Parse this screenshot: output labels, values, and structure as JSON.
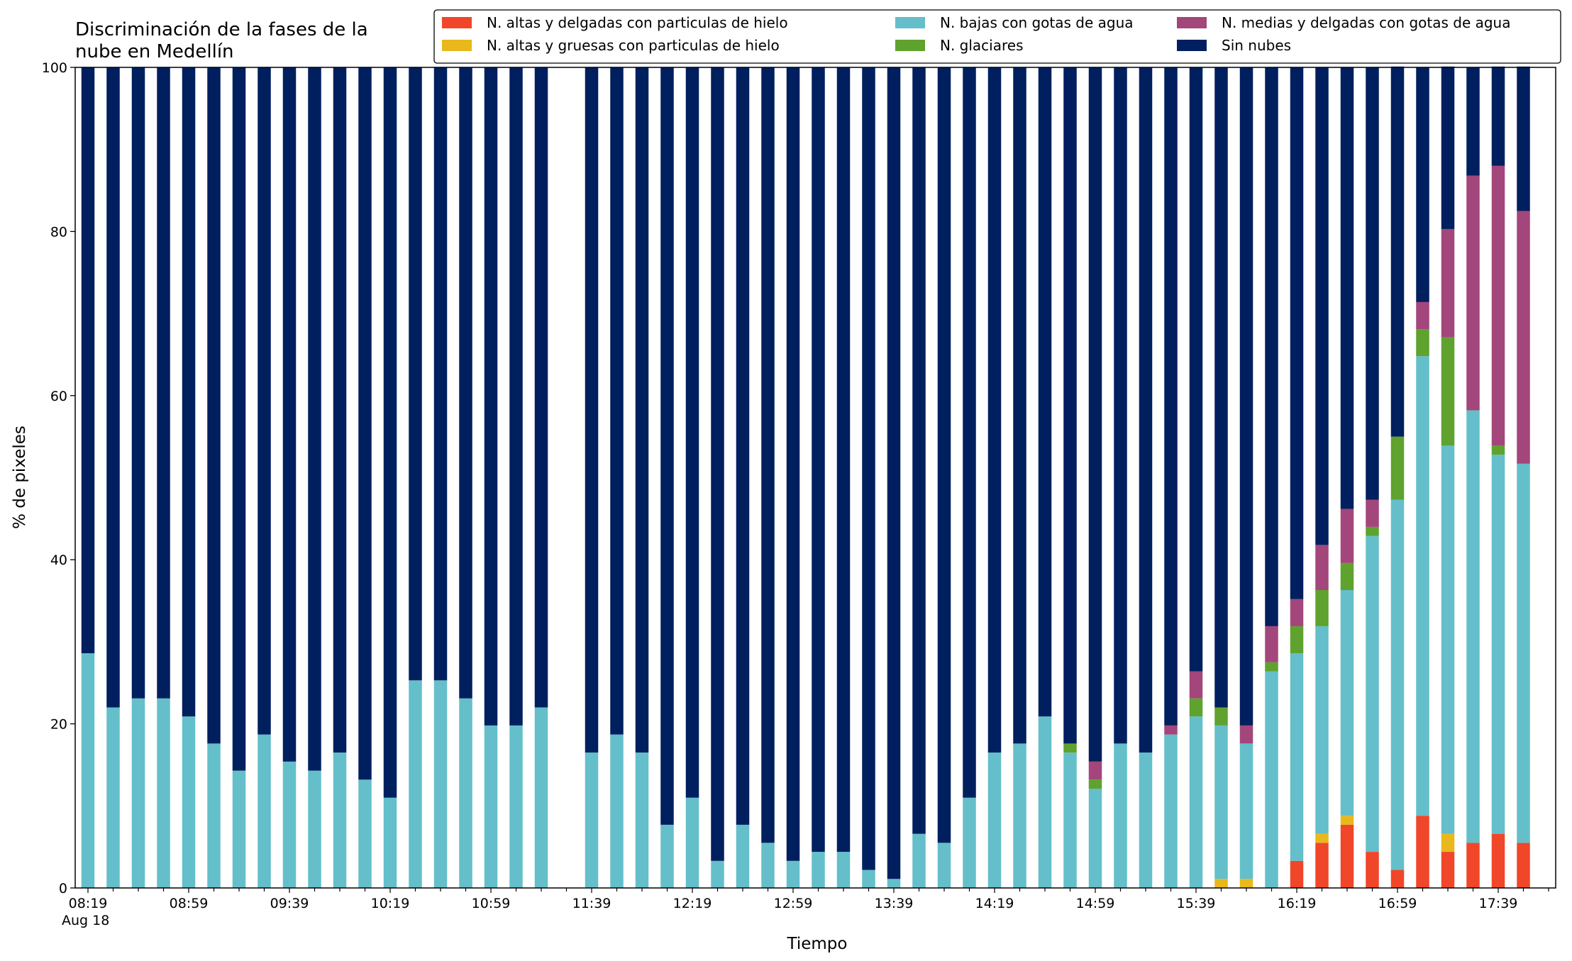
{
  "chart_data": {
    "type": "bar",
    "stacked": true,
    "title": "Discriminación de la fases de la\nnube en Medellín",
    "xlabel": "Tiempo",
    "ylabel": "% de pixeles",
    "ylim": [
      0,
      100
    ],
    "yticks": [
      0,
      20,
      40,
      60,
      80,
      100
    ],
    "xtick_labels": [
      {
        "slot": 0,
        "label": "08:19",
        "sublabel": "Aug 18"
      },
      {
        "slot": 4,
        "label": "08:59"
      },
      {
        "slot": 8,
        "label": "09:39"
      },
      {
        "slot": 12,
        "label": "10:19"
      },
      {
        "slot": 16,
        "label": "10:59"
      },
      {
        "slot": 20,
        "label": "11:39"
      },
      {
        "slot": 24,
        "label": "12:19"
      },
      {
        "slot": 28,
        "label": "12:59"
      },
      {
        "slot": 32,
        "label": "13:39"
      },
      {
        "slot": 36,
        "label": "14:19"
      },
      {
        "slot": 40,
        "label": "14:59"
      },
      {
        "slot": 44,
        "label": "15:39"
      },
      {
        "slot": 48,
        "label": "16:19"
      },
      {
        "slot": 52,
        "label": "16:59"
      },
      {
        "slot": 56,
        "label": "17:39"
      }
    ],
    "time_step_minutes": 10,
    "missing_slots": [
      19
    ],
    "legend_placement": "top",
    "series": [
      {
        "name": "N. altas y delgadas con particulas de hielo",
        "color": "#f0462a",
        "values": [
          0,
          0,
          0,
          0,
          0,
          0,
          0,
          0,
          0,
          0,
          0,
          0,
          0,
          0,
          0,
          0,
          0,
          0,
          0,
          0,
          0,
          0,
          0,
          0,
          0,
          0,
          0,
          0,
          0,
          0,
          0,
          0,
          0,
          0,
          0,
          0,
          0,
          0,
          0,
          0,
          0,
          0,
          0,
          0,
          0,
          0,
          0,
          0,
          3.3,
          5.5,
          7.7,
          4.4,
          2.2,
          8.8,
          4.4,
          5.5,
          6.6,
          5.5
        ]
      },
      {
        "name": "N. altas y gruesas con particulas de hielo",
        "color": "#e8b81c",
        "values": [
          0,
          0,
          0,
          0,
          0,
          0,
          0,
          0,
          0,
          0,
          0,
          0,
          0,
          0,
          0,
          0,
          0,
          0,
          0,
          0,
          0,
          0,
          0,
          0,
          0,
          0,
          0,
          0,
          0,
          0,
          0,
          0,
          0,
          0,
          0,
          0,
          0,
          0,
          0,
          0,
          0,
          0,
          0,
          0,
          0,
          1.1,
          1.1,
          0,
          0,
          1.1,
          1.1,
          0,
          0,
          0,
          2.2,
          0,
          0,
          0
        ]
      },
      {
        "name": "N. bajas con gotas de agua",
        "color": "#64bfca",
        "values": [
          28.6,
          22.0,
          23.1,
          23.1,
          20.9,
          17.6,
          14.3,
          18.7,
          15.4,
          14.3,
          16.5,
          13.2,
          11.0,
          25.3,
          25.3,
          23.1,
          19.8,
          19.8,
          22.0,
          0,
          16.5,
          18.7,
          16.5,
          7.7,
          11.0,
          3.3,
          7.7,
          5.5,
          3.3,
          4.4,
          4.4,
          2.2,
          1.1,
          6.6,
          5.5,
          11.0,
          16.5,
          17.6,
          20.9,
          16.5,
          12.1,
          17.6,
          16.5,
          18.7,
          20.9,
          18.7,
          16.5,
          26.4,
          25.3,
          25.3,
          27.5,
          38.5,
          45.1,
          56.0,
          47.3,
          52.7,
          46.2,
          46.2
        ]
      },
      {
        "name": "N. glaciares",
        "color": "#5fa22e",
        "values": [
          0,
          0,
          0,
          0,
          0,
          0,
          0,
          0,
          0,
          0,
          0,
          0,
          0,
          0,
          0,
          0,
          0,
          0,
          0,
          0,
          0,
          0,
          0,
          0,
          0,
          0,
          0,
          0,
          0,
          0,
          0,
          0,
          0,
          0,
          0,
          0,
          0,
          0,
          0,
          1.1,
          1.1,
          0,
          0,
          0,
          2.2,
          2.2,
          0,
          1.1,
          3.3,
          4.4,
          3.3,
          1.1,
          7.7,
          3.3,
          13.2,
          0,
          1.1,
          0
        ]
      },
      {
        "name": "N. medias y delgadas con gotas de agua",
        "color": "#a3467b",
        "values": [
          0,
          0,
          0,
          0,
          0,
          0,
          0,
          0,
          0,
          0,
          0,
          0,
          0,
          0,
          0,
          0,
          0,
          0,
          0,
          0,
          0,
          0,
          0,
          0,
          0,
          0,
          0,
          0,
          0,
          0,
          0,
          0,
          0,
          0,
          0,
          0,
          0,
          0,
          0,
          0,
          2.2,
          0,
          0,
          1.1,
          3.3,
          0,
          2.2,
          4.4,
          3.3,
          5.5,
          6.6,
          3.3,
          0,
          3.3,
          13.2,
          28.6,
          34.1,
          30.8
        ]
      },
      {
        "name": "Sin nubes",
        "color": "#001f5e",
        "values": [
          71.4,
          78.0,
          76.9,
          76.9,
          79.1,
          82.4,
          85.7,
          81.3,
          84.6,
          85.7,
          83.5,
          86.8,
          89.0,
          74.7,
          74.7,
          76.9,
          80.2,
          80.2,
          78.0,
          0,
          83.5,
          81.3,
          83.5,
          92.3,
          89.0,
          96.7,
          92.3,
          94.5,
          96.7,
          95.6,
          95.6,
          97.8,
          98.9,
          93.4,
          94.5,
          89.0,
          83.5,
          82.4,
          79.1,
          82.4,
          84.6,
          82.4,
          83.5,
          80.2,
          73.6,
          78.0,
          80.2,
          68.1,
          64.8,
          58.2,
          53.8,
          52.7,
          45.1,
          28.6,
          19.8,
          13.2,
          12.1,
          17.6
        ]
      }
    ]
  }
}
